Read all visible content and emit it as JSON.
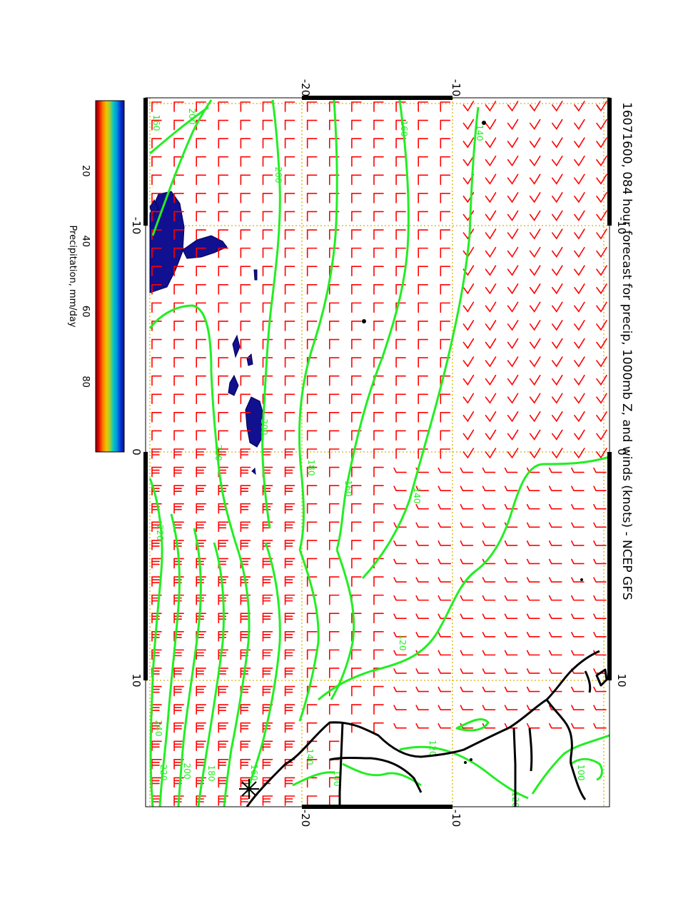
{
  "title": "16071600, 084 hour forecast for precip, 1000mb Z, and winds (knots) - NCEP GFS",
  "colorbar": {
    "label": "Precipitation, mm/day",
    "ticks": [
      "20",
      "40",
      "60",
      "80"
    ],
    "tick_values": [
      20,
      40,
      60,
      80
    ],
    "range": [
      0,
      100
    ],
    "colors": [
      "#7a0000",
      "#e00000",
      "#ff7a00",
      "#e8c800",
      "#c8d400",
      "#40c060",
      "#00c8c8",
      "#0090e0",
      "#0030d0",
      "#101090"
    ]
  },
  "map": {
    "longitude_labels_top": [
      "-10",
      "0",
      "10"
    ],
    "longitude_labels_bottom": [
      "-10",
      "0",
      "10"
    ],
    "latitude_labels_left": [
      "-20",
      "-10"
    ],
    "latitude_labels_right": [
      "-20",
      "-10"
    ],
    "contour_labels": [
      "160",
      "200",
      "200",
      "160",
      "140",
      "200",
      "220",
      "180",
      "160",
      "140",
      "120",
      "220",
      "240",
      "220",
      "200",
      "180",
      "160",
      "140",
      "120",
      "100",
      "120",
      "100"
    ],
    "colors": {
      "wind_barbs": "#ff0000",
      "height_contours": "#22ee22",
      "coastline": "#000000",
      "precip_fill": "#101090",
      "grid": "#d8b400"
    }
  }
}
